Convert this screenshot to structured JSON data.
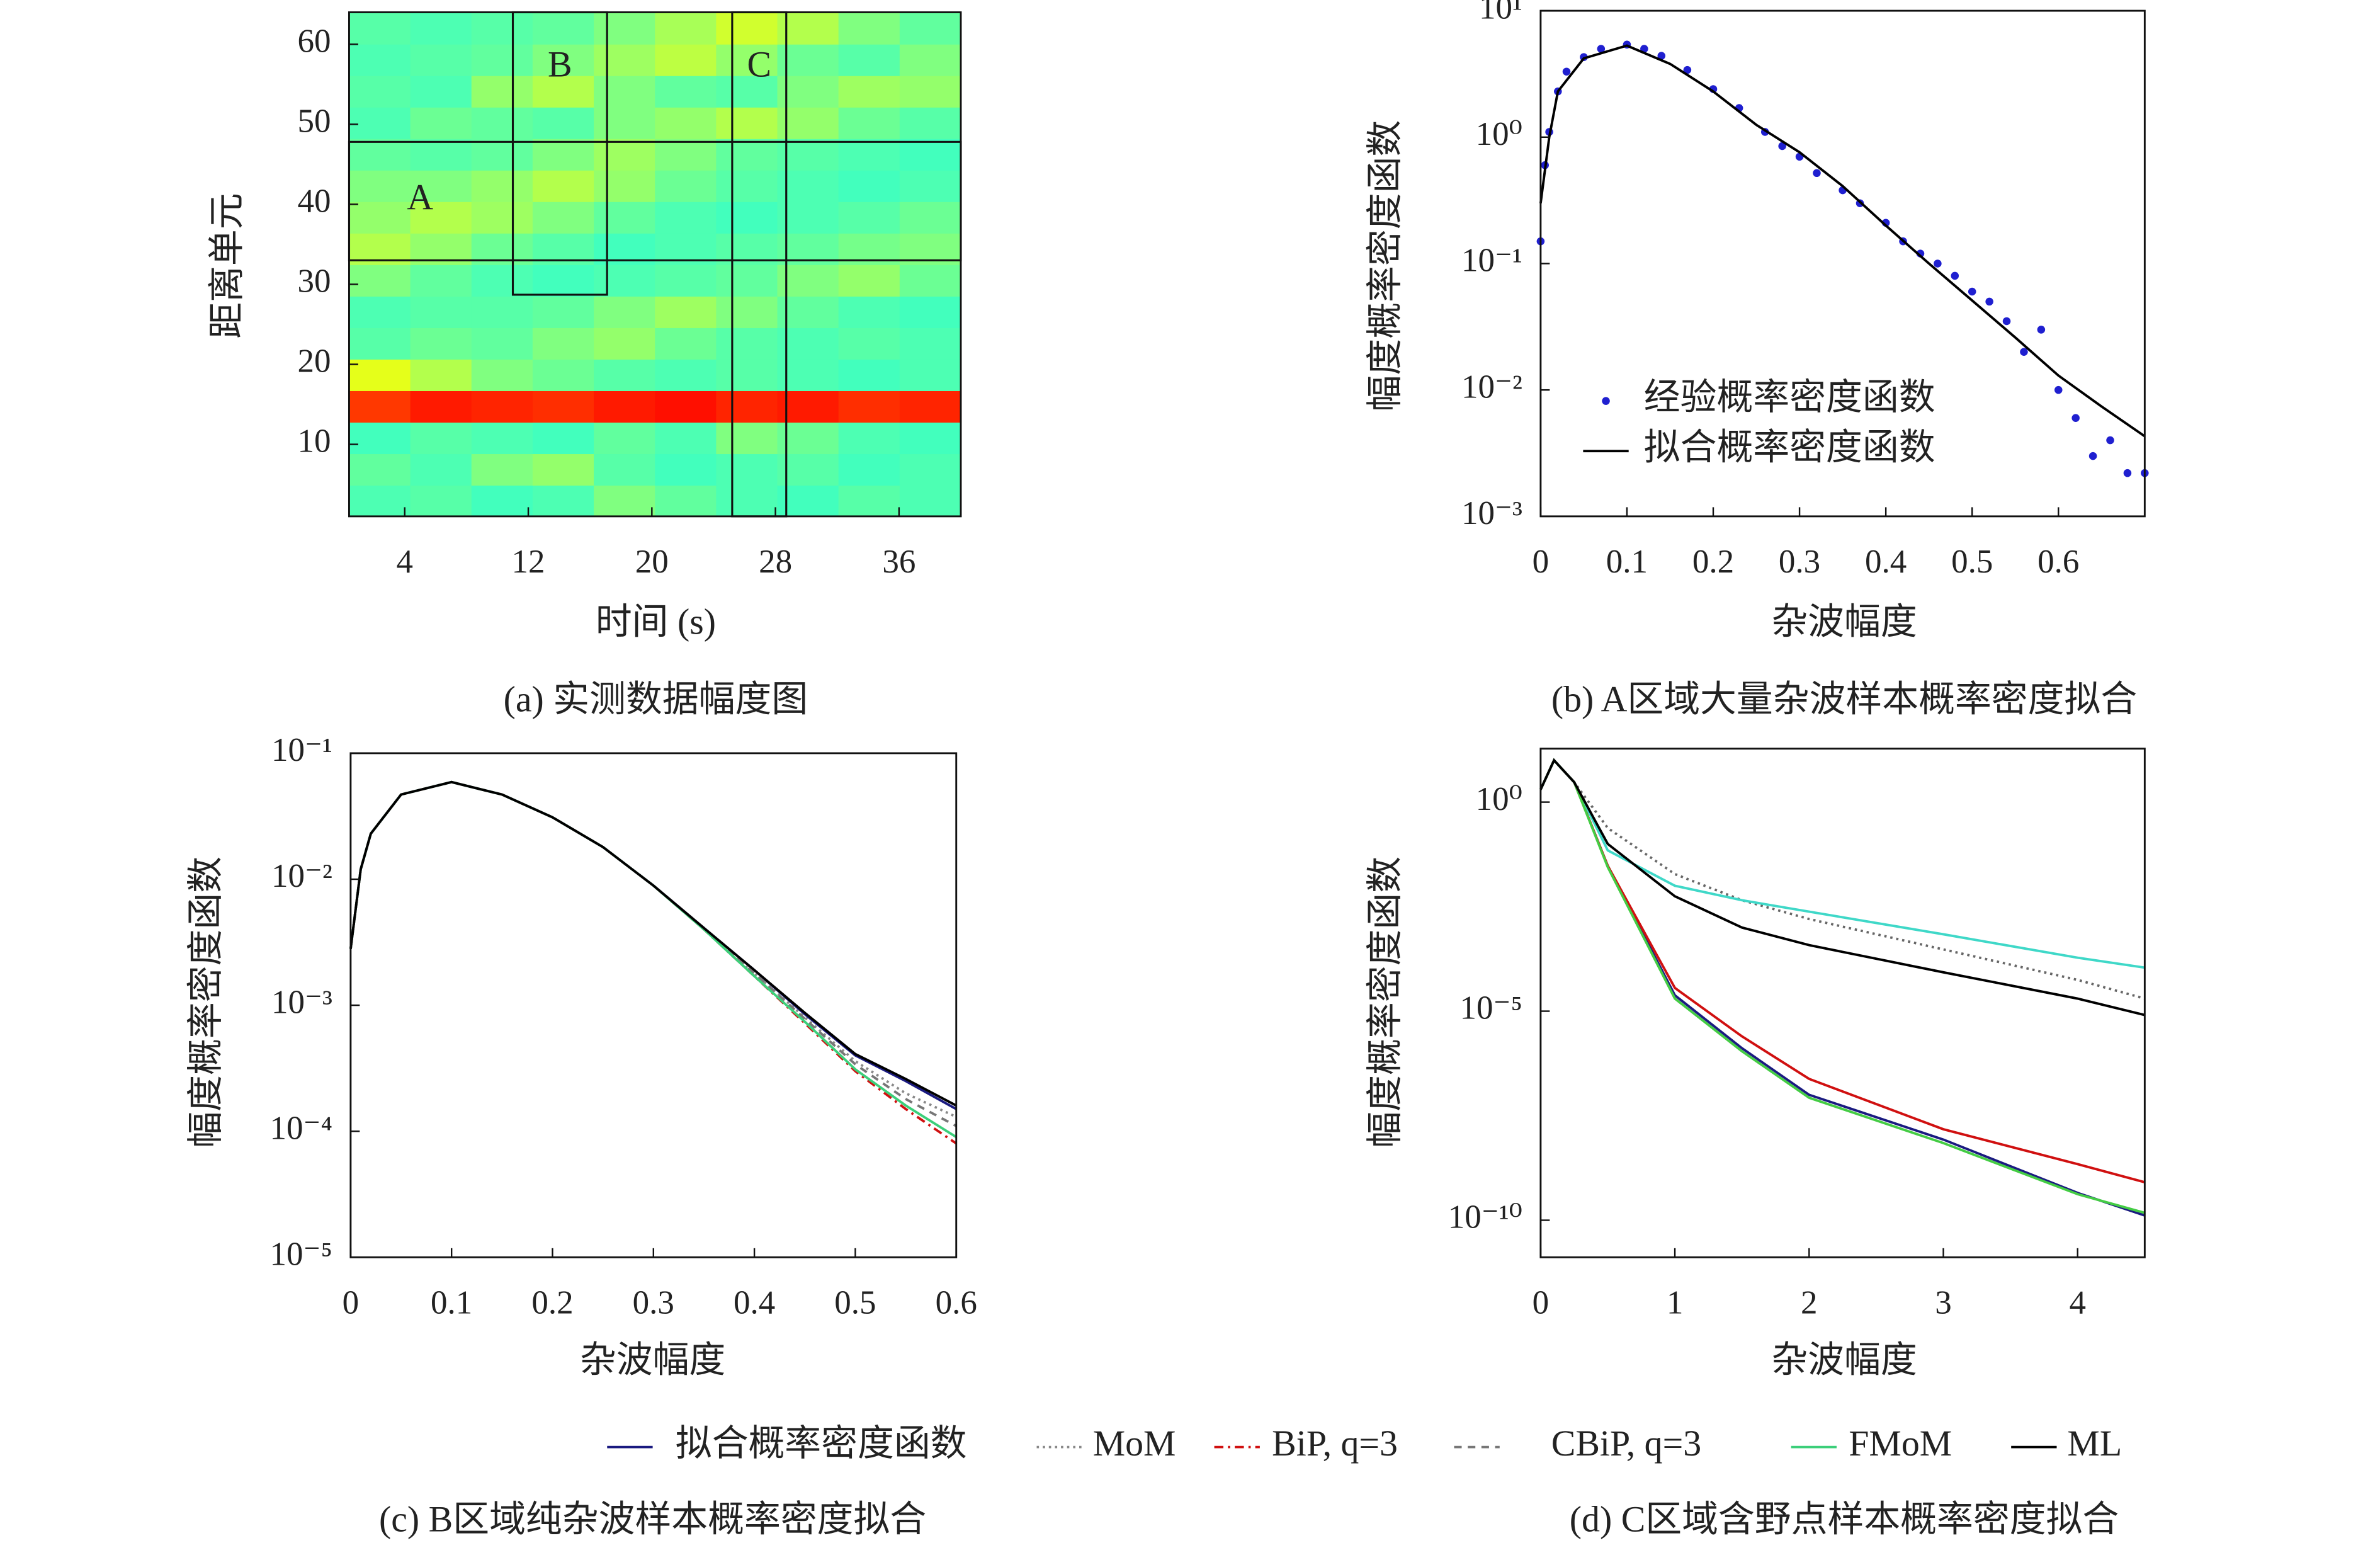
{
  "chart_data": [
    {
      "type": "heatmap",
      "caption": "(a) 实测数据幅度图",
      "x_label": "时间 (s)",
      "y_label": "距离单元",
      "xlim": [
        0.4,
        40
      ],
      "ylim": [
        1,
        64
      ],
      "xticks": [
        4,
        12,
        20,
        28,
        36
      ],
      "yticks": [
        10,
        20,
        30,
        40,
        50,
        60
      ],
      "colormap": "jet",
      "zlim": [
        0,
        1
      ],
      "values": [
        [
          0.45,
          0.46,
          0.44,
          0.45,
          0.5,
          0.47,
          0.45,
          0.44,
          0.46,
          0.45
        ],
        [
          0.47,
          0.45,
          0.5,
          0.52,
          0.46,
          0.44,
          0.45,
          0.46,
          0.44,
          0.45
        ],
        [
          0.44,
          0.46,
          0.45,
          0.44,
          0.47,
          0.45,
          0.5,
          0.48,
          0.45,
          0.44
        ],
        [
          0.82,
          0.85,
          0.84,
          0.83,
          0.85,
          0.86,
          0.84,
          0.85,
          0.83,
          0.84
        ],
        [
          0.6,
          0.55,
          0.5,
          0.48,
          0.46,
          0.45,
          0.46,
          0.45,
          0.44,
          0.45
        ],
        [
          0.46,
          0.48,
          0.47,
          0.5,
          0.52,
          0.48,
          0.46,
          0.45,
          0.46,
          0.45
        ],
        [
          0.45,
          0.46,
          0.46,
          0.47,
          0.5,
          0.53,
          0.5,
          0.47,
          0.45,
          0.44
        ],
        [
          0.5,
          0.47,
          0.45,
          0.44,
          0.45,
          0.46,
          0.47,
          0.5,
          0.52,
          0.48
        ],
        [
          0.55,
          0.52,
          0.48,
          0.46,
          0.44,
          0.45,
          0.46,
          0.47,
          0.49,
          0.5
        ],
        [
          0.52,
          0.55,
          0.53,
          0.5,
          0.47,
          0.45,
          0.44,
          0.45,
          0.46,
          0.48
        ],
        [
          0.5,
          0.5,
          0.52,
          0.55,
          0.52,
          0.48,
          0.46,
          0.45,
          0.44,
          0.45
        ],
        [
          0.47,
          0.46,
          0.47,
          0.5,
          0.53,
          0.5,
          0.47,
          0.46,
          0.45,
          0.44
        ],
        [
          0.45,
          0.48,
          0.47,
          0.46,
          0.5,
          0.52,
          0.55,
          0.52,
          0.48,
          0.46
        ],
        [
          0.46,
          0.45,
          0.52,
          0.55,
          0.5,
          0.47,
          0.46,
          0.5,
          0.53,
          0.52
        ],
        [
          0.45,
          0.46,
          0.47,
          0.5,
          0.53,
          0.56,
          0.52,
          0.48,
          0.46,
          0.5
        ],
        [
          0.46,
          0.45,
          0.46,
          0.47,
          0.5,
          0.54,
          0.58,
          0.55,
          0.5,
          0.47
        ]
      ],
      "regions": [
        {
          "label": "A",
          "xlim": [
            0.4,
            40
          ],
          "ylim": [
            33,
            47.8
          ]
        },
        {
          "label": "B",
          "xlim": [
            11,
            17.1
          ],
          "ylim": [
            28.7,
            64
          ]
        },
        {
          "label": "C",
          "xlim": [
            25.2,
            28.7
          ],
          "ylim": [
            1,
            64
          ]
        }
      ]
    },
    {
      "type": "line",
      "caption": "(b)  A区域大量杂波样本概率密度拟合",
      "x_label": "杂波幅度",
      "y_label": "幅度概率密度函数",
      "xlim": [
        0,
        0.7
      ],
      "ylim": [
        0.001,
        10
      ],
      "yscale": "log",
      "legend": "lower left",
      "xticks": [
        0,
        0.1,
        0.2,
        0.3,
        0.4,
        0.5,
        0.6
      ],
      "yticks": [
        {
          "value": 0.001,
          "label": "10⁻³"
        },
        {
          "value": 0.01,
          "label": "10⁻²"
        },
        {
          "value": 0.1,
          "label": "10⁻¹"
        },
        {
          "value": 1,
          "label": "10⁰"
        },
        {
          "value": 10,
          "label": "10¹"
        }
      ],
      "series": [
        {
          "name": "经验概率密度函数",
          "mode": "markers",
          "color": "#1f1fd0",
          "x": [
            0,
            0.005,
            0.01,
            0.02,
            0.03,
            0.05,
            0.07,
            0.1,
            0.12,
            0.14,
            0.17,
            0.2,
            0.23,
            0.26,
            0.28,
            0.3,
            0.32,
            0.35,
            0.37,
            0.4,
            0.42,
            0.44,
            0.46,
            0.48,
            0.5,
            0.52,
            0.54,
            0.56,
            0.58,
            0.6,
            0.62,
            0.64,
            0.66,
            0.68,
            0.7
          ],
          "values": [
            0.15,
            0.6,
            1.1,
            2.3,
            3.3,
            4.3,
            5.0,
            5.4,
            5.0,
            4.4,
            3.4,
            2.4,
            1.7,
            1.1,
            0.85,
            0.7,
            0.52,
            0.38,
            0.3,
            0.21,
            0.15,
            0.12,
            0.1,
            0.08,
            0.06,
            0.05,
            0.035,
            0.02,
            0.03,
            0.01,
            0.006,
            0.003,
            0.004,
            0.0022,
            0.0022
          ]
        },
        {
          "name": "拟合概率密度函数",
          "mode": "line",
          "color": "#000000",
          "x": [
            0,
            0.01,
            0.02,
            0.05,
            0.1,
            0.15,
            0.2,
            0.25,
            0.3,
            0.35,
            0.4,
            0.45,
            0.5,
            0.55,
            0.6,
            0.65,
            0.7
          ],
          "values": [
            0.3,
            1.0,
            2.3,
            4.2,
            5.3,
            3.8,
            2.3,
            1.25,
            0.76,
            0.41,
            0.2,
            0.1,
            0.051,
            0.026,
            0.013,
            0.0074,
            0.0043
          ]
        }
      ]
    },
    {
      "type": "line",
      "caption": "(c) B区域纯杂波样本概率密度拟合",
      "x_label": "杂波幅度",
      "y_label": "幅度概率密度函数",
      "xlim": [
        0,
        0.6
      ],
      "ylim": [
        1e-05,
        0.1
      ],
      "yscale": "log",
      "legend": "below",
      "xticks": [
        0,
        0.1,
        0.2,
        0.3,
        0.4,
        0.5,
        0.6
      ],
      "yticks": [
        {
          "value": 1e-05,
          "label": "10⁻⁵"
        },
        {
          "value": 0.0001,
          "label": "10⁻⁴"
        },
        {
          "value": 0.001,
          "label": "10⁻³"
        },
        {
          "value": 0.01,
          "label": "10⁻²"
        },
        {
          "value": 0.1,
          "label": "10⁻¹"
        }
      ],
      "x": [
        0,
        0.01,
        0.02,
        0.05,
        0.1,
        0.15,
        0.2,
        0.25,
        0.3,
        0.35,
        0.4,
        0.45,
        0.5,
        0.55,
        0.6
      ],
      "series": [
        {
          "name": "拟合概率密度函数",
          "color": "#1a1a80",
          "style": "solid",
          "values": [
            0.0028,
            0.012,
            0.023,
            0.047,
            0.059,
            0.047,
            0.031,
            0.018,
            0.0089,
            0.0041,
            0.0019,
            0.00085,
            0.0004,
            0.00025,
            0.00015
          ]
        },
        {
          "name": "MoM",
          "color": "#888888",
          "style": "dotted",
          "values": [
            0.0028,
            0.012,
            0.023,
            0.047,
            0.059,
            0.047,
            0.031,
            0.018,
            0.0089,
            0.0041,
            0.0018,
            0.0008,
            0.00036,
            0.0002,
            0.00013
          ]
        },
        {
          "name": "BiP, q=3",
          "color": "#d01010",
          "style": "dashdot",
          "values": [
            0.0028,
            0.012,
            0.023,
            0.047,
            0.059,
            0.047,
            0.031,
            0.018,
            0.0089,
            0.004,
            0.0017,
            0.00072,
            0.0003,
            0.00015,
            8e-05
          ]
        },
        {
          "name": "CBiP, q=3",
          "color": "#777777",
          "style": "dashed",
          "values": [
            0.0028,
            0.012,
            0.023,
            0.047,
            0.059,
            0.047,
            0.031,
            0.018,
            0.0089,
            0.0041,
            0.0018,
            0.00078,
            0.00034,
            0.00018,
            0.00011
          ]
        },
        {
          "name": "FMoM",
          "color": "#3ccf7a",
          "style": "solid",
          "values": [
            0.0028,
            0.012,
            0.023,
            0.047,
            0.059,
            0.047,
            0.031,
            0.018,
            0.0089,
            0.004,
            0.0017,
            0.00074,
            0.00031,
            0.00016,
            9e-05
          ]
        },
        {
          "name": "ML",
          "color": "#000000",
          "style": "solid",
          "values": [
            0.0028,
            0.012,
            0.023,
            0.047,
            0.059,
            0.047,
            0.031,
            0.018,
            0.0089,
            0.0041,
            0.0019,
            0.00087,
            0.00041,
            0.00026,
            0.00016
          ]
        }
      ]
    },
    {
      "type": "line",
      "caption": "(d) C区域含野点样本概率密度拟合",
      "x_label": "杂波幅度",
      "y_label": "幅度概率密度函数",
      "xlim": [
        0,
        4.5
      ],
      "ylim": [
        1.3e-11,
        19
      ],
      "yscale": "log",
      "xticks": [
        0,
        1,
        2,
        3,
        4
      ],
      "yticks": [
        {
          "value": 1e-10,
          "label": "10⁻¹⁰"
        },
        {
          "value": 1e-05,
          "label": "10⁻⁵"
        },
        {
          "value": 1,
          "label": "10⁰"
        }
      ],
      "x": [
        0,
        0.1,
        0.25,
        0.5,
        1,
        1.5,
        2,
        3,
        4,
        4.5
      ],
      "series": [
        {
          "name": "拟合概率密度函数",
          "color": "#1a1a80",
          "style": "solid",
          "values": [
            2,
            10,
            3,
            0.03,
            2.4e-05,
            1.3e-06,
            1e-07,
            8.5e-09,
            4.5e-10,
            1.3e-10
          ]
        },
        {
          "name": "MoM",
          "color": "#666666",
          "style": "dotted",
          "values": [
            2,
            10,
            3,
            0.24,
            0.019,
            0.0045,
            0.0016,
            0.0003,
            5.6e-05,
            2e-05
          ]
        },
        {
          "name": "BiP, q=3",
          "color": "#d01010",
          "style": "solid",
          "values": [
            2,
            10,
            3,
            0.03,
            3.6e-05,
            2.5e-06,
            2.4e-07,
            1.5e-08,
            2.2e-09,
            8.1e-10
          ]
        },
        {
          "name": "CBiP, q=3",
          "color": "#3fd8c8",
          "style": "solid",
          "values": [
            2,
            10,
            3,
            0.07,
            0.01,
            0.0045,
            0.0024,
            0.00069,
            0.00019,
            0.00011
          ]
        },
        {
          "name": "FMoM",
          "color": "#44cc44",
          "style": "solid",
          "values": [
            2,
            10,
            3,
            0.028,
            2e-05,
            1.1e-06,
            8.5e-08,
            7e-09,
            4.2e-10,
            1.5e-10
          ]
        },
        {
          "name": "ML",
          "color": "#000000",
          "style": "solid",
          "values": [
            2,
            10,
            3,
            0.1,
            0.0056,
            0.001,
            0.00038,
            8.5e-05,
            2e-05,
            8.1e-06
          ]
        }
      ]
    }
  ]
}
